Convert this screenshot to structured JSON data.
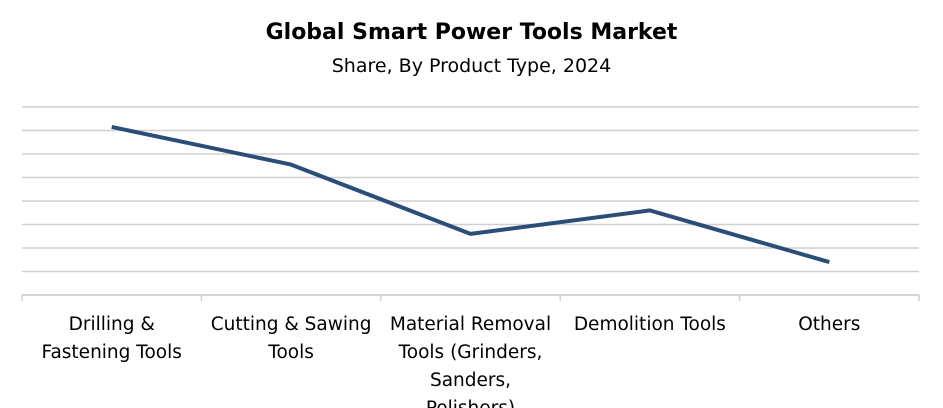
{
  "chart_data": {
    "type": "line",
    "title": "Global Smart Power Tools Market",
    "subtitle": "Share, By Product Type, 2024",
    "categories": [
      "Drilling & Fastening Tools",
      "Cutting & Sawing Tools",
      "Material Removal Tools (Grinders, Sanders, Polishers)",
      "Demolition Tools",
      "Others"
    ],
    "series": [
      {
        "color": "#2a4e78",
        "values": [
          7.15,
          5.55,
          2.6,
          3.6,
          1.4
        ]
      }
    ],
    "ylim": [
      0,
      8
    ],
    "yticks": [
      0,
      1,
      2,
      3,
      4,
      5,
      6,
      7,
      8
    ],
    "grid": true
  }
}
